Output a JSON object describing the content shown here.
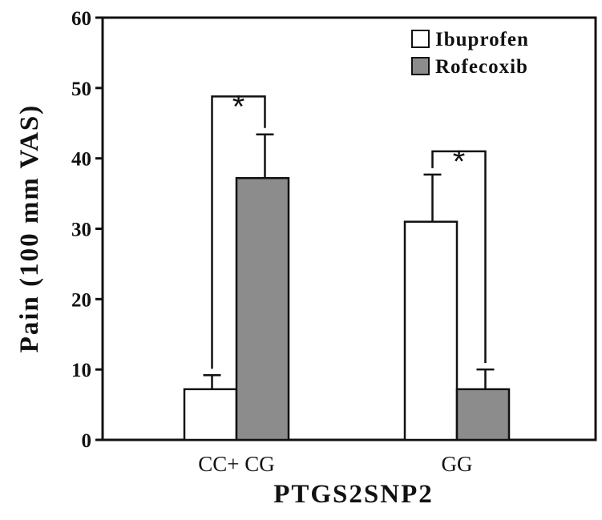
{
  "chart_data": {
    "type": "bar",
    "title": "",
    "xlabel": "PTGS2SNP2",
    "ylabel": "Pain (100 mm VAS)",
    "categories": [
      "CC+ CG",
      "GG"
    ],
    "series": [
      {
        "name": "Ibuprofen",
        "values": [
          7.2,
          31
        ],
        "errors": [
          2,
          6.7
        ],
        "color": "#ffffff"
      },
      {
        "name": "Rofecoxib",
        "values": [
          37.2,
          7.2
        ],
        "errors": [
          6.2,
          2.8
        ],
        "color": "#8c8c8c"
      }
    ],
    "ylim": [
      0,
      60
    ],
    "yticks": [
      "0",
      "10",
      "20",
      "30",
      "40",
      "50",
      "60"
    ],
    "significance": [
      {
        "category": "CC+ CG",
        "label": "*"
      },
      {
        "category": "GG",
        "label": "*"
      }
    ],
    "legend_position": "top-right",
    "grid": false
  }
}
